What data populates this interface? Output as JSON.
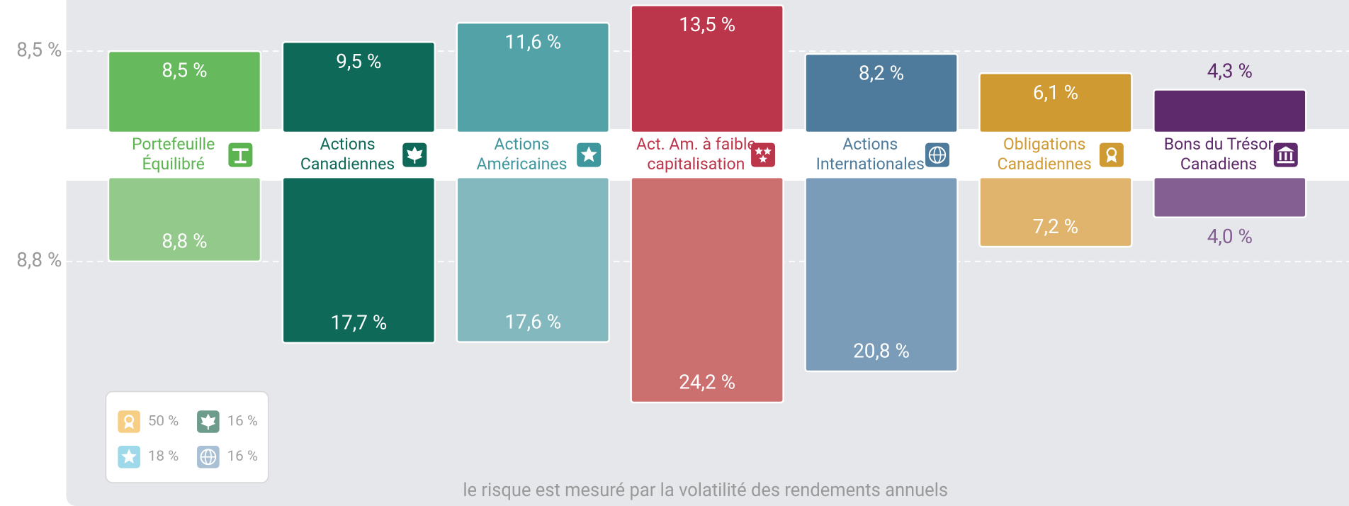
{
  "chart_data": {
    "type": "diverging-bar",
    "categories": [
      [
        "Portefeuille",
        "Équilibré"
      ],
      [
        "Actions",
        "Canadiennes"
      ],
      [
        "Actions",
        "Américaines"
      ],
      [
        "Act. Am. à faible",
        "capitalisation"
      ],
      [
        "Actions",
        "Internationales"
      ],
      [
        "Obligations",
        "Canadiennes"
      ],
      [
        "Bons du Trésor",
        "Canadiens"
      ]
    ],
    "label_colors": [
      "#5cb451",
      "#0e6958",
      "#3f979e",
      "#bb364b",
      "#4e7b9c",
      "#d09a32",
      "#5e2a6b"
    ],
    "icons": [
      "scale",
      "leaf",
      "star",
      "stars",
      "globe",
      "award",
      "bank"
    ],
    "returns": {
      "values": [
        8.5,
        9.5,
        11.6,
        13.5,
        8.2,
        6.1,
        4.3
      ],
      "value_labels": [
        "8,5 %",
        "9,5 %",
        "11,6 %",
        "13,5 %",
        "8,2 %",
        "6,1 %",
        "4,3 %"
      ],
      "colors": [
        "#66b95c",
        "#0e6958",
        "#52a2a8",
        "#bb364b",
        "#4e7b9c",
        "#d09a32",
        "#5e2a6b"
      ]
    },
    "risks": {
      "values": [
        8.8,
        17.7,
        17.6,
        24.2,
        20.8,
        7.2,
        4.0
      ],
      "value_labels": [
        "8,8 %",
        "17,7 %",
        "17,6 %",
        "24,2 %",
        "20,8 %",
        "7,2 %",
        "4,0 %"
      ],
      "colors": [
        "#93c98a",
        "#0e6958",
        "#82b8be",
        "#cc6f6f",
        "#7a9cb8",
        "#e0b46c",
        "#835f92"
      ]
    },
    "reference_lines": [
      {
        "value": 8.5,
        "label": "8,5 %",
        "side": "returns"
      },
      {
        "value": 8.8,
        "label": "8,8 %",
        "side": "risks"
      }
    ],
    "allocation": [
      {
        "value": 50,
        "label": "50 %",
        "color": "#f6cf85",
        "icon": "award"
      },
      {
        "value": 16,
        "label": "16 %",
        "color": "#6e9c8c",
        "icon": "leaf"
      },
      {
        "value": 18,
        "label": "18 %",
        "color": "#9ed9ea",
        "icon": "star"
      },
      {
        "value": 16,
        "label": "16 %",
        "color": "#a9c0d4",
        "icon": "globe"
      }
    ],
    "footnote": "le risque est mesuré par la volatilité des rendements annuels"
  }
}
